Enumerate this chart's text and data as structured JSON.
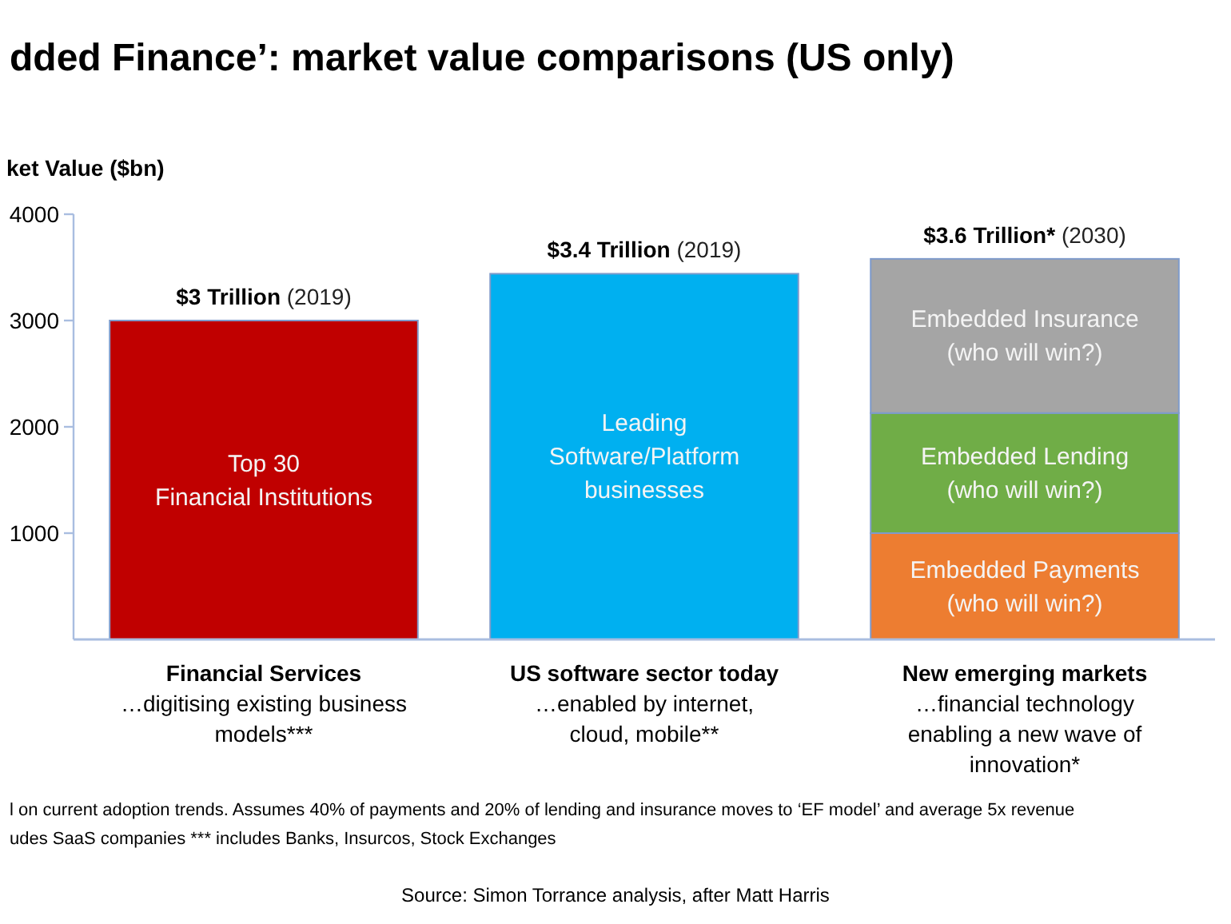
{
  "chart_data": {
    "type": "bar",
    "title": "dded Finance’: market value comparisons (US only)",
    "ylabel": "ket Value ($bn)",
    "categories": [
      "Financial Services\n…digitising existing business\nmodels***",
      "US software sector today\n…enabled by internet,\ncloud, mobile**",
      "New emerging markets\n…financial technology\nenabling a new wave of\ninnovation*"
    ],
    "series": [
      {
        "name": "Top 30\nFinancial Institutions",
        "color": "#c00000",
        "values": [
          3000,
          null,
          null
        ]
      },
      {
        "name": "Leading\nSoftware/Platform\nbusinesses",
        "color": "#00b0f0",
        "values": [
          null,
          3440,
          null
        ]
      },
      {
        "name": "Embedded Payments\n(who will win?)",
        "color": "#ed7d31",
        "values": [
          null,
          null,
          1000
        ]
      },
      {
        "name": "Embedded Lending\n(who will win?)",
        "color": "#70ad47",
        "values": [
          null,
          null,
          1130
        ]
      },
      {
        "name": "Embedded Insurance\n(who will win?)",
        "color": "#a5a5a5",
        "values": [
          null,
          null,
          1450
        ]
      }
    ],
    "stacked": true,
    "ylim": [
      0,
      4000
    ],
    "yticks": [
      1000,
      2000,
      3000,
      4000
    ],
    "totals": [
      "$3 Trillion (2019)",
      "$3.4 Trillion (2019)",
      "$3.6 Trillion* (2030)"
    ],
    "annotations": [
      "l on current adoption trends. Assumes 40% of payments and 20% of lending and insurance moves to ‘EF model’ and average 5x revenue",
      "udes SaaS companies  *** includes Banks, Insurcos, Stock Exchanges",
      "Source: Simon Torrance analysis, after Matt Harris"
    ]
  }
}
